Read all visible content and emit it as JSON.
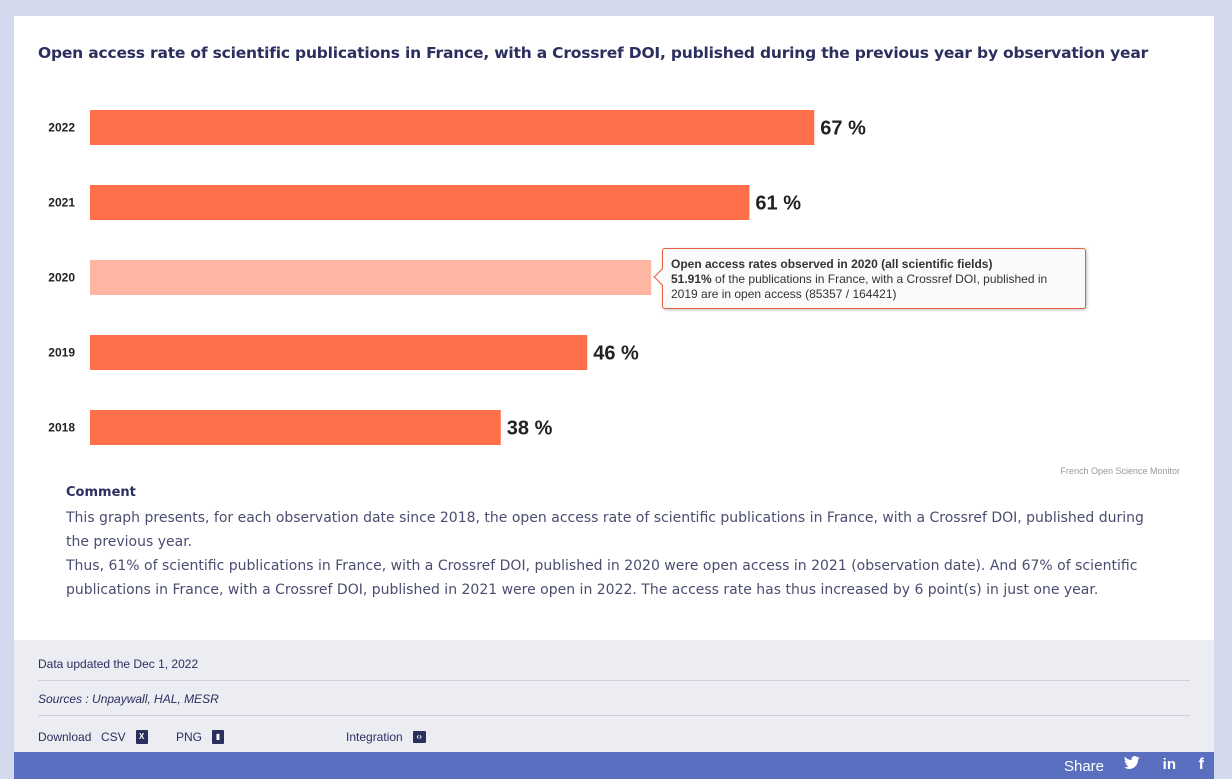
{
  "chart_title": "Open access rate of scientific publications in France, with a Crossref DOI, published during the previous year by observation year",
  "chart_data": {
    "type": "bar",
    "orientation": "horizontal",
    "categories": [
      "2022",
      "2021",
      "2020",
      "2019",
      "2018"
    ],
    "values": [
      67,
      61,
      51.91,
      46,
      38
    ],
    "data_labels": [
      "67 %",
      "61 %",
      "",
      "46 %",
      "38 %"
    ],
    "xlim": [
      0,
      100
    ],
    "highlighted_category": "2020",
    "colors": {
      "bar": "#ff6f4a",
      "bar_highlight": "#feb5a2"
    }
  },
  "tooltip": {
    "title": "Open access rates observed in 2020 (all scientific fields)",
    "value": "51.91%",
    "text": " of the publications in France, with a Crossref DOI, published in 2019 are in open access (85357 / 164421)"
  },
  "credit": "French Open Science Monitor",
  "comment": {
    "title": "Comment",
    "p1": "This graph presents, for each observation date since 2018, the open access rate of scientific publications in France, with a Crossref DOI, published during the previous year.",
    "p2": "Thus, 61% of scientific publications in France, with a Crossref DOI, published in 2020 were open access in 2021 (observation date). And 67% of scientific publications in France, with a Crossref DOI, published in 2021 were open in 2022. The access rate has thus increased by 6 point(s) in just one year."
  },
  "footer": {
    "updated": "Data updated the Dec 1, 2022",
    "sources": "Sources : Unpaywall, HAL, MESR",
    "download_label": "Download",
    "csv_label": "CSV",
    "png_label": "PNG",
    "integration_label": "Integration"
  },
  "share": {
    "label": "Share",
    "icons": [
      "twitter-icon",
      "linkedin-icon",
      "facebook-icon"
    ]
  }
}
